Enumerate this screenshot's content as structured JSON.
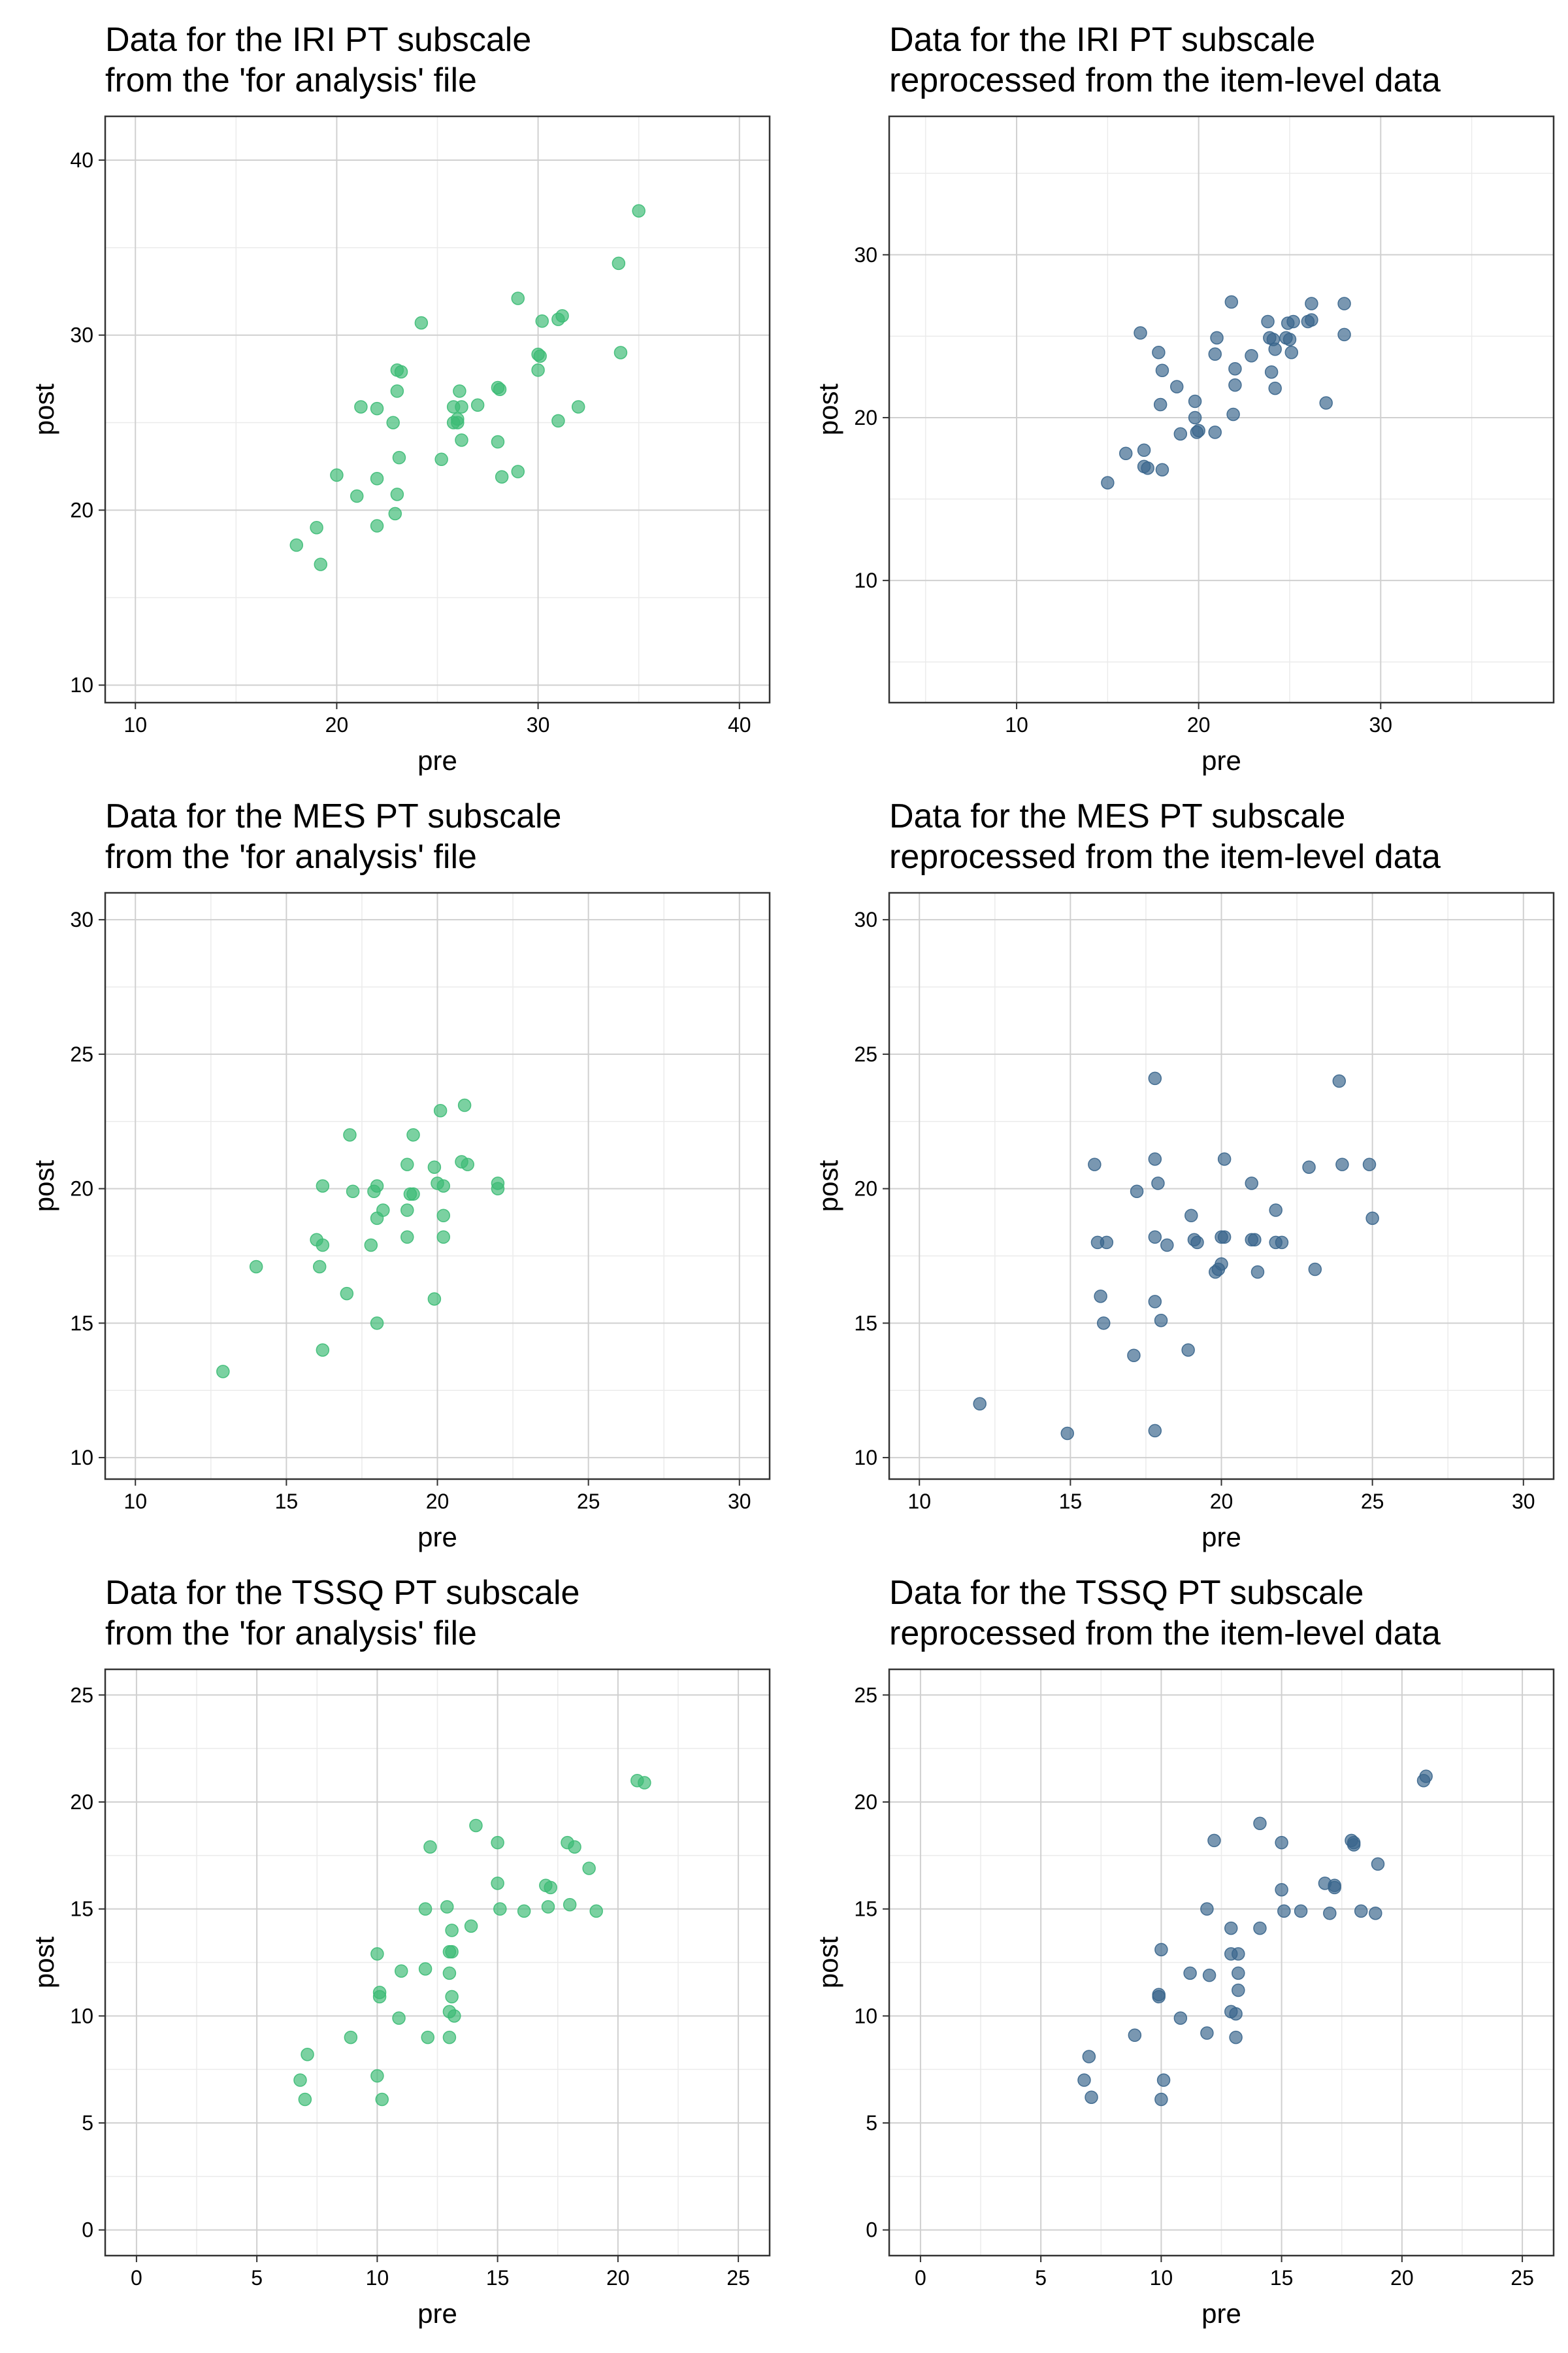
{
  "colors": {
    "green": "#3cbb75",
    "blue": "#39658c"
  },
  "chart_data": [
    {
      "type": "scatter",
      "title": [
        "Data for the IRI PT subscale",
        "from the 'for analysis' file"
      ],
      "xlabel": "pre",
      "ylabel": "post",
      "xlim": [
        8.5,
        41.5
      ],
      "ylim": [
        9,
        42.5
      ],
      "xticks": [
        10,
        20,
        30,
        40
      ],
      "yticks": [
        10,
        20,
        30,
        40
      ],
      "color": "#3cbb75",
      "points": [
        [
          18,
          18
        ],
        [
          19,
          19
        ],
        [
          19.2,
          16.9
        ],
        [
          20,
          22
        ],
        [
          21,
          20.8
        ],
        [
          21.2,
          25.9
        ],
        [
          22,
          21.8
        ],
        [
          22,
          19.1
        ],
        [
          22,
          25.8
        ],
        [
          22.8,
          25
        ],
        [
          23,
          28
        ],
        [
          23,
          26.8
        ],
        [
          23.1,
          23
        ],
        [
          23,
          20.9
        ],
        [
          22.9,
          19.8
        ],
        [
          23.2,
          27.9
        ],
        [
          24.2,
          30.7
        ],
        [
          25.2,
          22.9
        ],
        [
          25.8,
          25
        ],
        [
          25.8,
          25.9
        ],
        [
          26,
          25.2
        ],
        [
          26.1,
          26.8
        ],
        [
          26.2,
          25.9
        ],
        [
          26.2,
          24
        ],
        [
          26,
          25
        ],
        [
          27,
          26
        ],
        [
          28,
          27
        ],
        [
          28,
          23.9
        ],
        [
          28.1,
          26.9
        ],
        [
          28.2,
          21.9
        ],
        [
          29,
          32.1
        ],
        [
          29,
          22.2
        ],
        [
          30,
          28
        ],
        [
          30,
          28.9
        ],
        [
          30.1,
          28.8
        ],
        [
          30.2,
          30.8
        ],
        [
          31,
          25.1
        ],
        [
          31,
          30.9
        ],
        [
          31.2,
          31.1
        ],
        [
          32,
          25.9
        ],
        [
          34,
          34.1
        ],
        [
          34.1,
          29
        ],
        [
          35,
          37.1
        ]
      ]
    },
    {
      "type": "scatter",
      "title": [
        "Data for the IRI PT subscale",
        "reprocessed from the item-level data"
      ],
      "xlabel": "pre",
      "ylabel": "post",
      "xlim": [
        3,
        39.5
      ],
      "ylim": [
        2.5,
        38.5
      ],
      "xticks": [
        10,
        20,
        30
      ],
      "yticks": [
        10,
        20,
        30
      ],
      "color": "#39658c",
      "points": [
        [
          15,
          16
        ],
        [
          16,
          17.8
        ],
        [
          16.8,
          25.2
        ],
        [
          17,
          18
        ],
        [
          17,
          17
        ],
        [
          17.2,
          16.9
        ],
        [
          17.8,
          24
        ],
        [
          18,
          22.9
        ],
        [
          17.9,
          20.8
        ],
        [
          18,
          16.8
        ],
        [
          18.8,
          21.9
        ],
        [
          19,
          19
        ],
        [
          19.8,
          21
        ],
        [
          19.8,
          20
        ],
        [
          19.9,
          19.1
        ],
        [
          20,
          19.2
        ],
        [
          20.9,
          19.1
        ],
        [
          20.9,
          23.9
        ],
        [
          21,
          24.9
        ],
        [
          21.8,
          27.1
        ],
        [
          21.9,
          20.2
        ],
        [
          22,
          23
        ],
        [
          22,
          22
        ],
        [
          22.9,
          23.8
        ],
        [
          23.8,
          25.9
        ],
        [
          23.9,
          24.9
        ],
        [
          24,
          22.8
        ],
        [
          24.1,
          24.8
        ],
        [
          24.2,
          24.2
        ],
        [
          24.2,
          21.8
        ],
        [
          24.8,
          24.9
        ],
        [
          24.9,
          25.8
        ],
        [
          25,
          24.8
        ],
        [
          25.2,
          25.9
        ],
        [
          25.1,
          24
        ],
        [
          26,
          25.9
        ],
        [
          26.2,
          27
        ],
        [
          26.2,
          26
        ],
        [
          27,
          20.9
        ],
        [
          28,
          25.1
        ],
        [
          28,
          27
        ]
      ]
    },
    {
      "type": "scatter",
      "title": [
        "Data for the MES PT subscale",
        "from the 'for analysis' file"
      ],
      "xlabel": "pre",
      "ylabel": "post",
      "xlim": [
        9,
        31
      ],
      "ylim": [
        9.2,
        31
      ],
      "xticks": [
        10,
        15,
        20,
        25,
        30
      ],
      "yticks": [
        10,
        15,
        20,
        25,
        30
      ],
      "color": "#3cbb75",
      "points": [
        [
          12.9,
          13.2
        ],
        [
          14,
          17.1
        ],
        [
          16,
          18.1
        ],
        [
          16.1,
          17.1
        ],
        [
          16.2,
          20.1
        ],
        [
          16.2,
          17.9
        ],
        [
          16.2,
          14
        ],
        [
          17,
          16.1
        ],
        [
          17.1,
          22
        ],
        [
          17.2,
          19.9
        ],
        [
          17.8,
          17.9
        ],
        [
          17.9,
          19.9
        ],
        [
          18,
          18.9
        ],
        [
          18,
          20.1
        ],
        [
          18,
          15
        ],
        [
          18.2,
          19.2
        ],
        [
          19,
          20.9
        ],
        [
          19,
          19.2
        ],
        [
          19,
          18.2
        ],
        [
          19.1,
          19.8
        ],
        [
          19.2,
          22
        ],
        [
          19.2,
          19.8
        ],
        [
          19.9,
          15.9
        ],
        [
          19.9,
          20.8
        ],
        [
          20,
          20.2
        ],
        [
          20.1,
          22.9
        ],
        [
          20.2,
          19
        ],
        [
          20.2,
          18.2
        ],
        [
          20.2,
          20.1
        ],
        [
          20.8,
          21
        ],
        [
          20.9,
          23.1
        ],
        [
          21,
          20.9
        ],
        [
          22,
          20
        ],
        [
          22,
          20.2
        ]
      ]
    },
    {
      "type": "scatter",
      "title": [
        "Data for the MES PT subscale",
        "reprocessed from the item-level data"
      ],
      "xlabel": "pre",
      "ylabel": "post",
      "xlim": [
        9,
        31
      ],
      "ylim": [
        9.2,
        31
      ],
      "xticks": [
        10,
        15,
        20,
        25,
        30
      ],
      "yticks": [
        10,
        15,
        20,
        25,
        30
      ],
      "color": "#39658c",
      "points": [
        [
          12,
          12
        ],
        [
          14.9,
          10.9
        ],
        [
          15.8,
          20.9
        ],
        [
          15.9,
          18
        ],
        [
          16,
          16
        ],
        [
          16.1,
          15
        ],
        [
          16.2,
          18
        ],
        [
          17.1,
          13.8
        ],
        [
          17.2,
          19.9
        ],
        [
          17.8,
          24.1
        ],
        [
          17.8,
          21.1
        ],
        [
          17.8,
          18.2
        ],
        [
          17.8,
          15.8
        ],
        [
          17.8,
          11
        ],
        [
          17.9,
          20.2
        ],
        [
          18,
          15.1
        ],
        [
          18.2,
          17.9
        ],
        [
          18.9,
          14
        ],
        [
          19,
          19
        ],
        [
          19.1,
          18.1
        ],
        [
          19.2,
          18
        ],
        [
          19.8,
          16.9
        ],
        [
          20,
          17.2
        ],
        [
          19.9,
          17
        ],
        [
          20,
          18.2
        ],
        [
          20.1,
          18.2
        ],
        [
          20.1,
          21.1
        ],
        [
          21,
          20.2
        ],
        [
          21,
          18.1
        ],
        [
          21.1,
          18.1
        ],
        [
          21.2,
          16.9
        ],
        [
          21.8,
          19.2
        ],
        [
          21.8,
          18
        ],
        [
          22,
          18
        ],
        [
          22.9,
          20.8
        ],
        [
          23.1,
          17
        ],
        [
          23.9,
          24
        ],
        [
          24,
          20.9
        ],
        [
          24.9,
          20.9
        ],
        [
          25,
          18.9
        ]
      ]
    },
    {
      "type": "scatter",
      "title": [
        "Data for the TSSQ PT subscale",
        "from the 'for analysis' file"
      ],
      "xlabel": "pre",
      "ylabel": "post",
      "xlim": [
        -1.3,
        26.3
      ],
      "ylim": [
        -1.2,
        26.2
      ],
      "xticks": [
        0,
        5,
        10,
        15,
        20,
        25
      ],
      "yticks": [
        0,
        5,
        10,
        15,
        20,
        25
      ],
      "color": "#3cbb75",
      "points": [
        [
          6.8,
          7
        ],
        [
          7,
          6.1
        ],
        [
          7.1,
          8.2
        ],
        [
          8.9,
          9
        ],
        [
          10,
          12.9
        ],
        [
          10.1,
          11.1
        ],
        [
          10.1,
          10.9
        ],
        [
          10,
          7.2
        ],
        [
          10.2,
          6.1
        ],
        [
          10.9,
          9.9
        ],
        [
          11,
          12.1
        ],
        [
          12,
          15
        ],
        [
          12,
          12.2
        ],
        [
          12.1,
          9
        ],
        [
          12.2,
          17.9
        ],
        [
          12.9,
          15.1
        ],
        [
          13,
          13
        ],
        [
          13.1,
          13
        ],
        [
          13.1,
          14
        ],
        [
          13,
          12
        ],
        [
          13.1,
          10.9
        ],
        [
          13,
          10.2
        ],
        [
          13.2,
          10
        ],
        [
          13,
          9
        ],
        [
          13.9,
          14.2
        ],
        [
          14.1,
          18.9
        ],
        [
          15,
          18.1
        ],
        [
          15,
          16.2
        ],
        [
          15.1,
          15
        ],
        [
          16.1,
          14.9
        ],
        [
          17,
          16.1
        ],
        [
          17.1,
          15.1
        ],
        [
          17.2,
          16
        ],
        [
          17.9,
          18.1
        ],
        [
          18,
          15.2
        ],
        [
          18.2,
          17.9
        ],
        [
          18.8,
          16.9
        ],
        [
          19.1,
          14.9
        ],
        [
          20.8,
          21
        ],
        [
          21.1,
          20.9
        ]
      ]
    },
    {
      "type": "scatter",
      "title": [
        "Data for the TSSQ PT subscale",
        "reprocessed from the item-level data"
      ],
      "xlabel": "pre",
      "ylabel": "post",
      "xlim": [
        -1.3,
        26.3
      ],
      "ylim": [
        -1.2,
        26.2
      ],
      "xticks": [
        0,
        5,
        10,
        15,
        20,
        25
      ],
      "yticks": [
        0,
        5,
        10,
        15,
        20,
        25
      ],
      "color": "#39658c",
      "points": [
        [
          6.8,
          7
        ],
        [
          7,
          8.1
        ],
        [
          7.1,
          6.2
        ],
        [
          8.9,
          9.1
        ],
        [
          9.9,
          11
        ],
        [
          9.9,
          10.9
        ],
        [
          10,
          13.1
        ],
        [
          10,
          6.1
        ],
        [
          10.1,
          7
        ],
        [
          10.8,
          9.9
        ],
        [
          11.2,
          12
        ],
        [
          11.9,
          9.2
        ],
        [
          11.9,
          15
        ],
        [
          12,
          11.9
        ],
        [
          12.2,
          18.2
        ],
        [
          12.9,
          12.9
        ],
        [
          12.9,
          10.2
        ],
        [
          12.9,
          14.1
        ],
        [
          13.1,
          10.1
        ],
        [
          13.2,
          12.9
        ],
        [
          13.2,
          12
        ],
        [
          13.2,
          11.2
        ],
        [
          13.1,
          9
        ],
        [
          14.1,
          14.1
        ],
        [
          14.1,
          19
        ],
        [
          15,
          18.1
        ],
        [
          15,
          15.9
        ],
        [
          15.1,
          14.9
        ],
        [
          15.8,
          14.9
        ],
        [
          16.8,
          16.2
        ],
        [
          17,
          14.8
        ],
        [
          17.2,
          16.1
        ],
        [
          17.2,
          16
        ],
        [
          17.9,
          18.2
        ],
        [
          18,
          18
        ],
        [
          18,
          18.1
        ],
        [
          18.3,
          14.9
        ],
        [
          18.9,
          14.8
        ],
        [
          19,
          17.1
        ],
        [
          20.9,
          21
        ],
        [
          21,
          21.2
        ]
      ]
    }
  ]
}
